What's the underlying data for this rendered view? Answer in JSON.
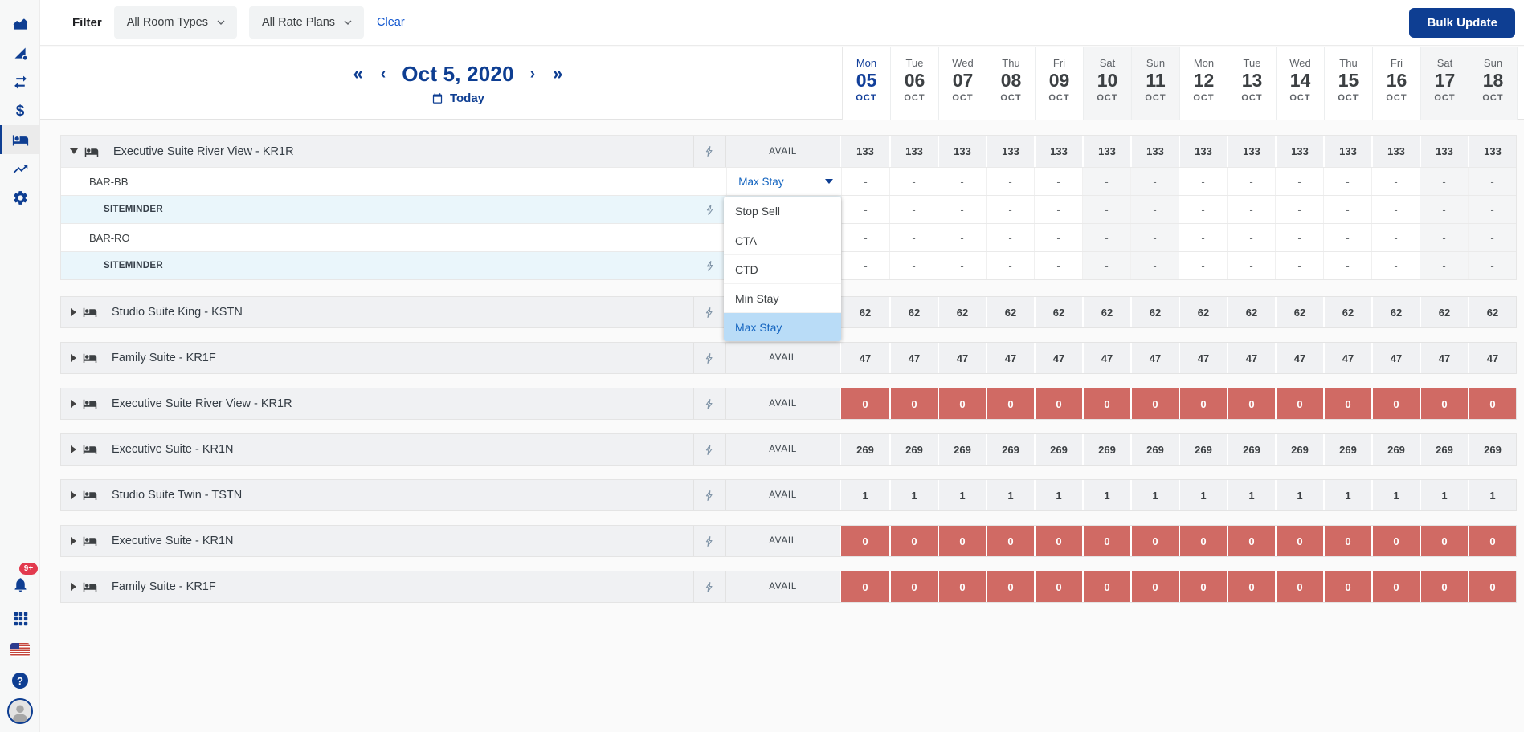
{
  "app": {
    "filter_label": "Filter",
    "room_types_filter": "All Room Types",
    "rate_plans_filter": "All Rate Plans",
    "clear_label": "Clear",
    "bulk_update_label": "Bulk Update"
  },
  "date_nav": {
    "current_date": "Oct 5, 2020",
    "today_label": "Today",
    "first_glyph": "«",
    "prev_glyph": "‹",
    "next_glyph": "›",
    "last_glyph": "»"
  },
  "calendar_days": [
    {
      "dow": "Mon",
      "day": "05",
      "month": "OCT",
      "today": true,
      "weekend": false
    },
    {
      "dow": "Tue",
      "day": "06",
      "month": "OCT",
      "today": false,
      "weekend": false
    },
    {
      "dow": "Wed",
      "day": "07",
      "month": "OCT",
      "today": false,
      "weekend": false
    },
    {
      "dow": "Thu",
      "day": "08",
      "month": "OCT",
      "today": false,
      "weekend": false
    },
    {
      "dow": "Fri",
      "day": "09",
      "month": "OCT",
      "today": false,
      "weekend": false
    },
    {
      "dow": "Sat",
      "day": "10",
      "month": "OCT",
      "today": false,
      "weekend": true
    },
    {
      "dow": "Sun",
      "day": "11",
      "month": "OCT",
      "today": false,
      "weekend": true
    },
    {
      "dow": "Mon",
      "day": "12",
      "month": "OCT",
      "today": false,
      "weekend": false
    },
    {
      "dow": "Tue",
      "day": "13",
      "month": "OCT",
      "today": false,
      "weekend": false
    },
    {
      "dow": "Wed",
      "day": "14",
      "month": "OCT",
      "today": false,
      "weekend": false
    },
    {
      "dow": "Thu",
      "day": "15",
      "month": "OCT",
      "today": false,
      "weekend": false
    },
    {
      "dow": "Fri",
      "day": "16",
      "month": "OCT",
      "today": false,
      "weekend": false
    },
    {
      "dow": "Sat",
      "day": "17",
      "month": "OCT",
      "today": false,
      "weekend": true
    },
    {
      "dow": "Sun",
      "day": "18",
      "month": "OCT",
      "today": false,
      "weekend": true
    }
  ],
  "metric_dropdown": {
    "value": "Max Stay",
    "options": [
      "Stop Sell",
      "CTA",
      "CTD",
      "Min Stay",
      "Max Stay"
    ],
    "selected_option": "Max Stay"
  },
  "inventory_grid": {
    "metric_header": "AVAIL",
    "sections": [
      {
        "kind": "room-expanded",
        "label": "Executive Suite River View - KR1R",
        "metric": "AVAIL",
        "has_flash": true,
        "values": [
          "133",
          "133",
          "133",
          "133",
          "133",
          "133",
          "133",
          "133",
          "133",
          "133",
          "133",
          "133",
          "133",
          "133"
        ],
        "children": [
          {
            "kind": "rate-plan",
            "label": "BAR-BB",
            "has_dropdown": true,
            "has_flash": false,
            "values": [
              "-",
              "-",
              "-",
              "-",
              "-",
              "-",
              "-",
              "-",
              "-",
              "-",
              "-",
              "-",
              "-",
              "-"
            ]
          },
          {
            "kind": "channel",
            "label": "SITEMINDER",
            "has_flash": true,
            "values": [
              "-",
              "-",
              "-",
              "-",
              "-",
              "-",
              "-",
              "-",
              "-",
              "-",
              "-",
              "-",
              "-",
              "-"
            ]
          },
          {
            "kind": "rate-plan",
            "label": "BAR-RO",
            "has_dropdown": false,
            "has_flash": false,
            "values": [
              "-",
              "-",
              "-",
              "-",
              "-",
              "-",
              "-",
              "-",
              "-",
              "-",
              "-",
              "-",
              "-",
              "-"
            ]
          },
          {
            "kind": "channel",
            "label": "SITEMINDER",
            "has_flash": true,
            "values": [
              "-",
              "-",
              "-",
              "-",
              "-",
              "-",
              "-",
              "-",
              "-",
              "-",
              "-",
              "-",
              "-",
              "-"
            ]
          }
        ]
      },
      {
        "kind": "room",
        "label": "Studio Suite King - KSTN",
        "metric": "AVAIL",
        "has_flash": true,
        "alert": false,
        "values": [
          "62",
          "62",
          "62",
          "62",
          "62",
          "62",
          "62",
          "62",
          "62",
          "62",
          "62",
          "62",
          "62",
          "62"
        ]
      },
      {
        "kind": "room",
        "label": "Family Suite - KR1F",
        "metric": "AVAIL",
        "has_flash": true,
        "alert": false,
        "values": [
          "47",
          "47",
          "47",
          "47",
          "47",
          "47",
          "47",
          "47",
          "47",
          "47",
          "47",
          "47",
          "47",
          "47"
        ]
      },
      {
        "kind": "room",
        "label": "Executive Suite River View - KR1R",
        "metric": "AVAIL",
        "has_flash": true,
        "alert": true,
        "values": [
          "0",
          "0",
          "0",
          "0",
          "0",
          "0",
          "0",
          "0",
          "0",
          "0",
          "0",
          "0",
          "0",
          "0"
        ]
      },
      {
        "kind": "room",
        "label": "Executive Suite - KR1N",
        "metric": "AVAIL",
        "has_flash": true,
        "alert": false,
        "values": [
          "269",
          "269",
          "269",
          "269",
          "269",
          "269",
          "269",
          "269",
          "269",
          "269",
          "269",
          "269",
          "269",
          "269"
        ]
      },
      {
        "kind": "room",
        "label": "Studio Suite Twin - TSTN",
        "metric": "AVAIL",
        "has_flash": true,
        "alert": false,
        "values": [
          "1",
          "1",
          "1",
          "1",
          "1",
          "1",
          "1",
          "1",
          "1",
          "1",
          "1",
          "1",
          "1",
          "1"
        ]
      },
      {
        "kind": "room",
        "label": "Executive Suite - KR1N",
        "metric": "AVAIL",
        "has_flash": true,
        "alert": true,
        "values": [
          "0",
          "0",
          "0",
          "0",
          "0",
          "0",
          "0",
          "0",
          "0",
          "0",
          "0",
          "0",
          "0",
          "0"
        ]
      },
      {
        "kind": "room",
        "label": "Family Suite - KR1F",
        "metric": "AVAIL",
        "has_flash": true,
        "alert": true,
        "values": [
          "0",
          "0",
          "0",
          "0",
          "0",
          "0",
          "0",
          "0",
          "0",
          "0",
          "0",
          "0",
          "0",
          "0"
        ]
      }
    ]
  },
  "sidebar": {
    "items": [
      {
        "name": "dashboard",
        "icon": "area-chart-icon",
        "selected": false
      },
      {
        "name": "rate-insights",
        "icon": "triangle-gear-icon",
        "selected": false
      },
      {
        "name": "channel-sync",
        "icon": "compare-arrows-icon",
        "selected": false
      },
      {
        "name": "rates",
        "icon": "dollar-icon",
        "selected": false
      },
      {
        "name": "inventory",
        "icon": "bed-icon",
        "selected": true
      },
      {
        "name": "trends",
        "icon": "trending-up-icon",
        "selected": false
      },
      {
        "name": "settings",
        "icon": "gear-icon",
        "selected": false
      }
    ],
    "bottom": {
      "notification_count": "9+",
      "items": [
        {
          "name": "notifications",
          "icon": "bell-icon"
        },
        {
          "name": "apps",
          "icon": "apps-grid-icon"
        },
        {
          "name": "language",
          "icon": "us-flag-icon"
        },
        {
          "name": "help",
          "icon": "question-icon"
        },
        {
          "name": "account",
          "icon": "avatar-icon"
        }
      ]
    }
  },
  "colors": {
    "navy": "#0e3e92",
    "link_blue": "#1458cf",
    "dd_blue": "#1565c0",
    "selected_bg": "#b9dcf7",
    "alert_red": "#d06a64",
    "weekend_bg": "#f4f5f6",
    "channel_bg": "#eaf6fb",
    "group_bg": "#f0f1f3",
    "badge_red": "#e23a4e",
    "flash_gray": "#8195a8",
    "today_blue": "#123f9a"
  }
}
